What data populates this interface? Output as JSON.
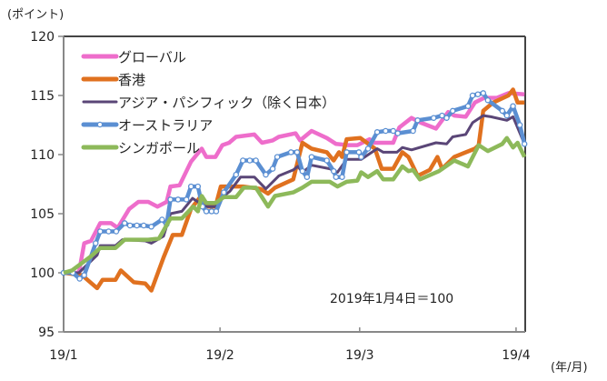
{
  "chart_data": {
    "type": "line",
    "title": "",
    "ylabel": "(ポイント)",
    "xlabel": "(年/月)",
    "ylim": [
      95,
      120
    ],
    "yticks": [
      95,
      100,
      105,
      110,
      115,
      120
    ],
    "xlim": [
      0,
      60.5
    ],
    "xticks": [
      {
        "x": 0,
        "label": "19/1"
      },
      {
        "x": 20.5,
        "label": "19/2"
      },
      {
        "x": 38.8,
        "label": "19/3"
      },
      {
        "x": 59.3,
        "label": "19/4"
      }
    ],
    "annotation": "2019年1月4日＝100",
    "legend_position": "top-left",
    "grid": false,
    "series": [
      {
        "name": "グローバル",
        "color": "#EE6DCB",
        "markers": false,
        "points": [
          [
            0,
            100
          ],
          [
            2,
            100
          ],
          [
            2.7,
            102.5
          ],
          [
            3.6,
            102.7
          ],
          [
            4.8,
            104.2
          ],
          [
            6.2,
            104.2
          ],
          [
            7.1,
            103.8
          ],
          [
            8.6,
            105.4
          ],
          [
            9.8,
            106
          ],
          [
            11.1,
            106
          ],
          [
            12.3,
            105.6
          ],
          [
            13.5,
            106
          ],
          [
            14,
            107.3
          ],
          [
            15.2,
            107.4
          ],
          [
            16.7,
            109.4
          ],
          [
            18.1,
            110.5
          ],
          [
            18.7,
            109.8
          ],
          [
            19.9,
            109.8
          ],
          [
            20.8,
            110.8
          ],
          [
            21.7,
            111
          ],
          [
            22.6,
            111.5
          ],
          [
            25,
            111.7
          ],
          [
            26,
            111
          ],
          [
            27.4,
            111.2
          ],
          [
            28.2,
            111.5
          ],
          [
            30.4,
            111.8
          ],
          [
            31,
            111.2
          ],
          [
            32.5,
            112
          ],
          [
            34.5,
            111.4
          ],
          [
            35.7,
            110.9
          ],
          [
            37.3,
            110.8
          ],
          [
            38.5,
            110.8
          ],
          [
            40.1,
            111.3
          ],
          [
            40.7,
            111
          ],
          [
            43.2,
            111
          ],
          [
            44,
            112.3
          ],
          [
            45.6,
            113.1
          ],
          [
            46.8,
            112.7
          ],
          [
            48.8,
            112.2
          ],
          [
            50.4,
            113.6
          ],
          [
            51.2,
            113.3
          ],
          [
            52.7,
            113.2
          ],
          [
            53.9,
            114.4
          ],
          [
            55.1,
            114.8
          ],
          [
            56.8,
            114.8
          ],
          [
            58.3,
            115.2
          ],
          [
            60.4,
            115.1
          ]
        ]
      },
      {
        "name": "香港",
        "color": "#E0711F",
        "markers": false,
        "points": [
          [
            0,
            100
          ],
          [
            2.4,
            99.8
          ],
          [
            4.4,
            98.7
          ],
          [
            5.1,
            99.4
          ],
          [
            6.8,
            99.4
          ],
          [
            7.5,
            100.2
          ],
          [
            9.2,
            99.2
          ],
          [
            10.7,
            99.1
          ],
          [
            11.5,
            98.5
          ],
          [
            13.1,
            101.3
          ],
          [
            14.3,
            103.2
          ],
          [
            15.5,
            103.2
          ],
          [
            16.7,
            105.4
          ],
          [
            17.9,
            106.4
          ],
          [
            19,
            105.6
          ],
          [
            19.9,
            105.6
          ],
          [
            20.6,
            107.3
          ],
          [
            23.5,
            107.3
          ],
          [
            25.8,
            107.1
          ],
          [
            26.8,
            106.7
          ],
          [
            27.7,
            107.2
          ],
          [
            30.1,
            107.9
          ],
          [
            31.3,
            111
          ],
          [
            32.5,
            110.5
          ],
          [
            34.5,
            110.2
          ],
          [
            35.4,
            109.5
          ],
          [
            36.1,
            110.2
          ],
          [
            36.5,
            109.8
          ],
          [
            37.1,
            111.3
          ],
          [
            38.9,
            111.4
          ],
          [
            40.8,
            110.5
          ],
          [
            41.7,
            108.8
          ],
          [
            43.2,
            108.8
          ],
          [
            44.4,
            110.2
          ],
          [
            45.2,
            109.8
          ],
          [
            46.4,
            108.2
          ],
          [
            48,
            108.7
          ],
          [
            49,
            109.8
          ],
          [
            49.6,
            108.8
          ],
          [
            51.2,
            109.8
          ],
          [
            53.9,
            110.5
          ],
          [
            54.4,
            110.8
          ],
          [
            55,
            113.7
          ],
          [
            56.3,
            114.4
          ],
          [
            58.3,
            115
          ],
          [
            58.9,
            115.5
          ],
          [
            59.5,
            114.4
          ],
          [
            60.4,
            114.4
          ]
        ]
      },
      {
        "name": "アジア・パシフィック（除く日本）",
        "color": "#5A4677",
        "markers": false,
        "points": [
          [
            0,
            100
          ],
          [
            2,
            100
          ],
          [
            4.4,
            101.5
          ],
          [
            4.8,
            102.3
          ],
          [
            6.8,
            102.3
          ],
          [
            7.7,
            102.8
          ],
          [
            10.7,
            102.7
          ],
          [
            11.5,
            102.5
          ],
          [
            13.1,
            103.1
          ],
          [
            14,
            105
          ],
          [
            15.5,
            105.2
          ],
          [
            16.9,
            106.3
          ],
          [
            17.6,
            106
          ],
          [
            18.7,
            105.6
          ],
          [
            19.9,
            105.6
          ],
          [
            20.8,
            106.4
          ],
          [
            21.8,
            106.9
          ],
          [
            23.2,
            108.1
          ],
          [
            25,
            108.1
          ],
          [
            26.5,
            107.1
          ],
          [
            28.2,
            108.2
          ],
          [
            30.1,
            108.7
          ],
          [
            30.7,
            109
          ],
          [
            31.3,
            108.5
          ],
          [
            32.5,
            109.1
          ],
          [
            34.9,
            108.8
          ],
          [
            35.9,
            108.5
          ],
          [
            37.1,
            109.6
          ],
          [
            39,
            109.6
          ],
          [
            41.1,
            110.5
          ],
          [
            41.9,
            110.2
          ],
          [
            43.7,
            110.2
          ],
          [
            44.4,
            110.6
          ],
          [
            45.6,
            110.4
          ],
          [
            48.8,
            111
          ],
          [
            50.2,
            110.9
          ],
          [
            51,
            111.5
          ],
          [
            52.7,
            111.7
          ],
          [
            53.6,
            112.7
          ],
          [
            55,
            113.3
          ],
          [
            56,
            113.2
          ],
          [
            58.1,
            112.9
          ],
          [
            58.9,
            113.2
          ],
          [
            60.4,
            110.9
          ]
        ]
      },
      {
        "name": "オーストラリア",
        "color": "#5B8FD2",
        "markers": true,
        "points": [
          [
            0,
            100
          ],
          [
            1.2,
            100
          ],
          [
            2.1,
            99.5
          ],
          [
            2.7,
            99.8
          ],
          [
            4.2,
            102.5
          ],
          [
            4.8,
            103.5
          ],
          [
            5.9,
            103.5
          ],
          [
            6.9,
            103.5
          ],
          [
            8,
            104.2
          ],
          [
            8.7,
            104
          ],
          [
            9.6,
            104
          ],
          [
            10.5,
            104
          ],
          [
            11.5,
            103.9
          ],
          [
            12.9,
            104.5
          ],
          [
            13.5,
            104.1
          ],
          [
            14,
            106.2
          ],
          [
            15,
            106.2
          ],
          [
            16.1,
            106.2
          ],
          [
            16.7,
            107.3
          ],
          [
            17.6,
            107.3
          ],
          [
            18.2,
            105.6
          ],
          [
            18.7,
            105.2
          ],
          [
            19.4,
            105.2
          ],
          [
            20,
            105.2
          ],
          [
            21,
            106.8
          ],
          [
            22.6,
            108.3
          ],
          [
            23.5,
            109.5
          ],
          [
            24.4,
            109.5
          ],
          [
            25.2,
            109.5
          ],
          [
            26.5,
            108.3
          ],
          [
            27.4,
            108.8
          ],
          [
            28,
            109.8
          ],
          [
            29.8,
            110.2
          ],
          [
            30.6,
            110.2
          ],
          [
            31.3,
            108.6
          ],
          [
            31.9,
            108.1
          ],
          [
            32.5,
            109.8
          ],
          [
            34.5,
            109.5
          ],
          [
            35.4,
            108.6
          ],
          [
            35.7,
            108.1
          ],
          [
            36.5,
            108.1
          ],
          [
            37.1,
            110.2
          ],
          [
            38.7,
            110.2
          ],
          [
            39,
            109.8
          ],
          [
            39.9,
            110.5
          ],
          [
            41.1,
            111.9
          ],
          [
            42.2,
            112
          ],
          [
            43.2,
            112
          ],
          [
            43.8,
            111.8
          ],
          [
            45.8,
            112
          ],
          [
            46.4,
            112.9
          ],
          [
            48.5,
            113.1
          ],
          [
            49.6,
            113.3
          ],
          [
            50.2,
            113.1
          ],
          [
            51,
            113.7
          ],
          [
            53,
            114.1
          ],
          [
            53.6,
            115
          ],
          [
            54.3,
            115.1
          ],
          [
            55,
            115.2
          ],
          [
            55.6,
            114.6
          ],
          [
            57.5,
            113.7
          ],
          [
            58.1,
            113.3
          ],
          [
            58.9,
            114.1
          ],
          [
            59.8,
            112.5
          ],
          [
            60.4,
            110.9
          ]
        ]
      },
      {
        "name": "シンガポール",
        "color": "#8DB95A",
        "markers": false,
        "points": [
          [
            0,
            100
          ],
          [
            1.1,
            100.2
          ],
          [
            3.6,
            101.4
          ],
          [
            4.8,
            102.1
          ],
          [
            6.8,
            102.1
          ],
          [
            8,
            102.8
          ],
          [
            9.5,
            102.8
          ],
          [
            11.1,
            102.8
          ],
          [
            12.5,
            102.9
          ],
          [
            14,
            104.6
          ],
          [
            15.5,
            104.6
          ],
          [
            17,
            105.6
          ],
          [
            17.6,
            105.2
          ],
          [
            18.1,
            106.5
          ],
          [
            18.7,
            105.9
          ],
          [
            19.9,
            105.9
          ],
          [
            21,
            106.4
          ],
          [
            22.6,
            106.4
          ],
          [
            23.6,
            107.2
          ],
          [
            25.2,
            107.2
          ],
          [
            26.8,
            105.6
          ],
          [
            27.7,
            106.5
          ],
          [
            30.1,
            106.8
          ],
          [
            31.3,
            107.2
          ],
          [
            32.5,
            107.7
          ],
          [
            34.9,
            107.7
          ],
          [
            35.9,
            107.3
          ],
          [
            37.1,
            107.7
          ],
          [
            38.5,
            107.8
          ],
          [
            39,
            108.5
          ],
          [
            39.9,
            108.1
          ],
          [
            41.1,
            108.6
          ],
          [
            41.9,
            107.9
          ],
          [
            43.2,
            107.9
          ],
          [
            44.4,
            109
          ],
          [
            45.2,
            108.6
          ],
          [
            45.8,
            108.7
          ],
          [
            46.7,
            107.9
          ],
          [
            49.2,
            108.6
          ],
          [
            51.2,
            109.5
          ],
          [
            53,
            109
          ],
          [
            54.4,
            110.8
          ],
          [
            55.6,
            110.3
          ],
          [
            57.5,
            110.9
          ],
          [
            58.1,
            111.4
          ],
          [
            58.9,
            110.6
          ],
          [
            59.5,
            111
          ],
          [
            60.4,
            109.8
          ]
        ]
      }
    ]
  }
}
